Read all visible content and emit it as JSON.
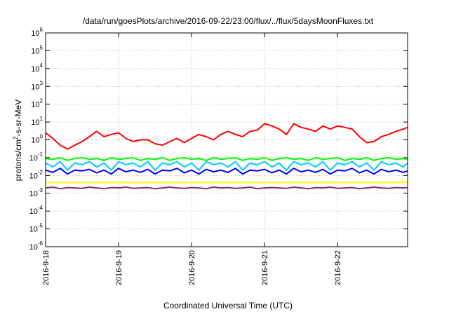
{
  "chart_data": {
    "type": "line",
    "title": "/data/run/goesPlots/archive/2016-09-22/23:00/flux/../flux/5daysMoonFluxes.txt",
    "xlabel": "Coordinated Universal Time (UTC)",
    "ylabel": {
      "base": "protons/cm",
      "sup": "2",
      "rest": "-s-sr-MeV"
    },
    "y_scale": "log",
    "ylim": [
      1e-06,
      1000000.0
    ],
    "y_ticks": [
      {
        "base": "10",
        "exp": "-6"
      },
      {
        "base": "10",
        "exp": "-5"
      },
      {
        "base": "10",
        "exp": "-4"
      },
      {
        "base": "10",
        "exp": "-3"
      },
      {
        "base": "10",
        "exp": "-2"
      },
      {
        "base": "10",
        "exp": "-1"
      },
      {
        "base": "10",
        "exp": "0"
      },
      {
        "base": "10",
        "exp": "1"
      },
      {
        "base": "10",
        "exp": "2"
      },
      {
        "base": "10",
        "exp": "3"
      },
      {
        "base": "10",
        "exp": "4"
      },
      {
        "base": "10",
        "exp": "5"
      },
      {
        "base": "10",
        "exp": "6"
      }
    ],
    "x_ticks": [
      "2016-9-18",
      "2016-9-19",
      "2016-9-20",
      "2016-9-21",
      "2016-9-22"
    ],
    "xlim": [
      "2016-9-18 00:00",
      "2016-9-22 23:00"
    ],
    "grid": true,
    "x_days": [
      0,
      0.1,
      0.2,
      0.3,
      0.4,
      0.5,
      0.6,
      0.7,
      0.8,
      0.9,
      1.0,
      1.1,
      1.2,
      1.3,
      1.4,
      1.5,
      1.6,
      1.7,
      1.8,
      1.9,
      2.0,
      2.1,
      2.2,
      2.3,
      2.4,
      2.5,
      2.6,
      2.7,
      2.8,
      2.9,
      3.0,
      3.1,
      3.2,
      3.3,
      3.4,
      3.5,
      3.6,
      3.7,
      3.8,
      3.9,
      4.0,
      4.1,
      4.2,
      4.3,
      4.4,
      4.5,
      4.6,
      4.7,
      4.8,
      4.9,
      4.96
    ],
    "series": [
      {
        "color": "#ff0000",
        "values": [
          2.5,
          1.2,
          0.5,
          0.3,
          0.5,
          0.8,
          1.5,
          3.0,
          1.5,
          2.0,
          2.5,
          1.2,
          0.8,
          1.0,
          1.0,
          0.6,
          0.5,
          0.8,
          1.2,
          0.7,
          1.2,
          2.0,
          1.5,
          1.0,
          2.0,
          3.0,
          2.0,
          1.5,
          3.0,
          3.5,
          8.0,
          6.0,
          4.0,
          2.0,
          8.0,
          5.0,
          4.0,
          3.0,
          6.0,
          4.0,
          6.0,
          5.0,
          4.0,
          1.5,
          0.7,
          0.8,
          1.5,
          2.0,
          3.0,
          4.0,
          5.0
        ]
      },
      {
        "color": "#00ff00",
        "values": [
          0.09,
          0.08,
          0.1,
          0.07,
          0.09,
          0.1,
          0.08,
          0.09,
          0.07,
          0.1,
          0.08,
          0.09,
          0.1,
          0.07,
          0.09,
          0.08,
          0.1,
          0.07,
          0.09,
          0.1,
          0.08,
          0.09,
          0.07,
          0.1,
          0.08,
          0.09,
          0.1,
          0.07,
          0.09,
          0.08,
          0.1,
          0.07,
          0.09,
          0.1,
          0.08,
          0.09,
          0.07,
          0.1,
          0.08,
          0.09,
          0.1,
          0.07,
          0.09,
          0.08,
          0.1,
          0.07,
          0.09,
          0.1,
          0.08,
          0.09,
          0.08
        ]
      },
      {
        "color": "#00c8ff",
        "values": [
          0.05,
          0.03,
          0.06,
          0.02,
          0.05,
          0.04,
          0.06,
          0.03,
          0.05,
          0.02,
          0.06,
          0.04,
          0.05,
          0.03,
          0.06,
          0.02,
          0.05,
          0.04,
          0.06,
          0.03,
          0.05,
          0.02,
          0.06,
          0.04,
          0.05,
          0.03,
          0.06,
          0.02,
          0.05,
          0.04,
          0.06,
          0.03,
          0.05,
          0.02,
          0.06,
          0.04,
          0.05,
          0.03,
          0.06,
          0.02,
          0.05,
          0.04,
          0.06,
          0.03,
          0.05,
          0.02,
          0.06,
          0.04,
          0.05,
          0.03,
          0.05
        ]
      },
      {
        "color": "#0000ff",
        "values": [
          0.02,
          0.015,
          0.025,
          0.012,
          0.02,
          0.018,
          0.022,
          0.014,
          0.02,
          0.012,
          0.025,
          0.016,
          0.02,
          0.015,
          0.022,
          0.012,
          0.02,
          0.018,
          0.025,
          0.014,
          0.02,
          0.012,
          0.022,
          0.016,
          0.02,
          0.015,
          0.025,
          0.012,
          0.02,
          0.018,
          0.022,
          0.014,
          0.02,
          0.012,
          0.025,
          0.016,
          0.02,
          0.015,
          0.022,
          0.012,
          0.02,
          0.018,
          0.025,
          0.014,
          0.02,
          0.012,
          0.022,
          0.016,
          0.02,
          0.015,
          0.018
        ]
      },
      {
        "color": "#ffff00",
        "values": [
          0.004,
          0.004,
          0.004,
          0.004,
          0.004,
          0.004,
          0.004,
          0.004,
          0.004,
          0.004,
          0.004,
          0.004,
          0.004,
          0.004,
          0.004,
          0.004,
          0.004,
          0.004,
          0.004,
          0.004,
          0.004,
          0.004,
          0.004,
          0.004,
          0.004,
          0.004,
          0.004,
          0.004,
          0.004,
          0.004,
          0.004,
          0.004,
          0.004,
          0.004,
          0.004,
          0.004,
          0.004,
          0.004,
          0.004,
          0.004,
          0.004,
          0.004,
          0.004,
          0.004,
          0.004,
          0.004,
          0.004,
          0.004,
          0.004,
          0.004,
          0.004
        ]
      },
      {
        "color": "#8b2a6a",
        "values": [
          0.002,
          0.0022,
          0.0018,
          0.0021,
          0.002,
          0.0019,
          0.0022,
          0.002,
          0.0018,
          0.0021,
          0.002,
          0.0022,
          0.0019,
          0.002,
          0.0021,
          0.0018,
          0.002,
          0.0022,
          0.002,
          0.0019,
          0.0021,
          0.002,
          0.0018,
          0.0022,
          0.002,
          0.0021,
          0.0019,
          0.002,
          0.0022,
          0.0018,
          0.002,
          0.0021,
          0.002,
          0.0019,
          0.0022,
          0.002,
          0.0018,
          0.0021,
          0.002,
          0.0022,
          0.0019,
          0.002,
          0.0021,
          0.0018,
          0.002,
          0.0022,
          0.002,
          0.0019,
          0.0021,
          0.002,
          0.0021
        ]
      }
    ]
  }
}
